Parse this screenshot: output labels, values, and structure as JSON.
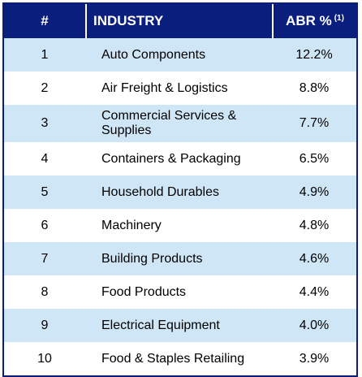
{
  "header": {
    "num": "#",
    "industry": "INDUSTRY",
    "abr": "ABR %",
    "abr_note": "(1)"
  },
  "rows": [
    {
      "num": "1",
      "industry": "Auto Components",
      "abr": "12.2%"
    },
    {
      "num": "2",
      "industry": "Air Freight & Logistics",
      "abr": "8.8%"
    },
    {
      "num": "3",
      "industry": "Commercial Services & Supplies",
      "abr": "7.7%"
    },
    {
      "num": "4",
      "industry": "Containers & Packaging",
      "abr": "6.5%"
    },
    {
      "num": "5",
      "industry": "Household Durables",
      "abr": "4.9%"
    },
    {
      "num": "6",
      "industry": "Machinery",
      "abr": "4.8%"
    },
    {
      "num": "7",
      "industry": "Building Products",
      "abr": "4.6%"
    },
    {
      "num": "8",
      "industry": "Food Products",
      "abr": "4.4%"
    },
    {
      "num": "9",
      "industry": "Electrical Equipment",
      "abr": "4.0%"
    },
    {
      "num": "10",
      "industry": "Food & Staples Retailing",
      "abr": "3.9%"
    }
  ],
  "colors": {
    "header_bg": "#0a1e7d",
    "stripe": "#cfe6f7",
    "text": "#000000"
  }
}
